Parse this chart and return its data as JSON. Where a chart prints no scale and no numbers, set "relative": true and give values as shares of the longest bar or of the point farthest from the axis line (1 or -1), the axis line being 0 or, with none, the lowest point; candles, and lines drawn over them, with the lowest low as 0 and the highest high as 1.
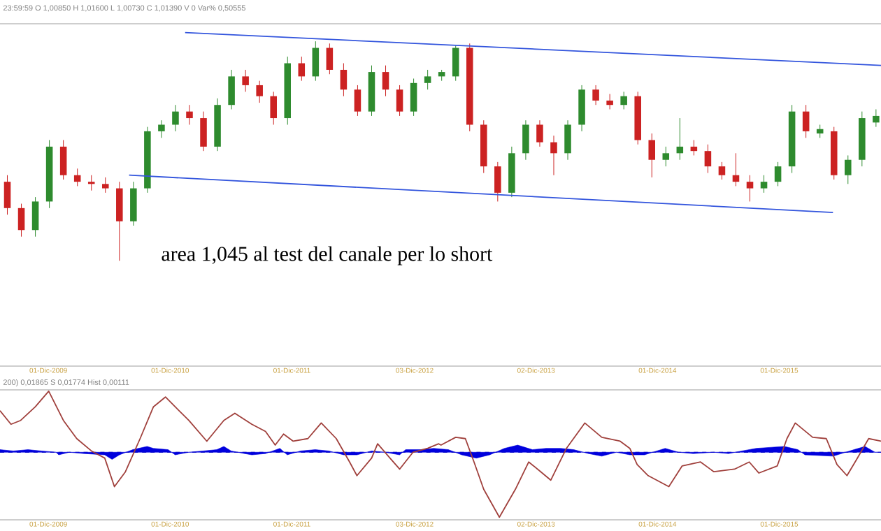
{
  "chart_data": [
    {
      "type": "candlestick",
      "relative": true,
      "colors": [
        "#cc2222",
        "#cc2222",
        "#2e8b2e",
        "#2e8b2e",
        "#cc2222",
        "#cc2222",
        "#cc2222",
        "#cc2222",
        "#cc2222",
        "#2e8b2e",
        "#2e8b2e",
        "#2e8b2e",
        "#2e8b2e",
        "#cc2222",
        "#cc2222",
        "#2e8b2e",
        "#2e8b2e",
        "#cc2222",
        "#cc2222",
        "#cc2222",
        "#2e8b2e",
        "#cc2222",
        "#2e8b2e",
        "#cc2222",
        "#cc2222",
        "#cc2222",
        "#2e8b2e",
        "#cc2222",
        "#cc2222",
        "#2e8b2e",
        "#2e8b2e",
        "#2e8b2e",
        "#2e8b2e",
        "#cc2222",
        "#cc2222",
        "#cc2222",
        "#2e8b2e",
        "#2e8b2e",
        "#cc2222",
        "#cc2222",
        "#2e8b2e",
        "#2e8b2e",
        "#cc2222",
        "#cc2222",
        "#2e8b2e",
        "#cc2222",
        "#cc2222",
        "#2e8b2e",
        "#2e8b2e",
        "#cc2222",
        "#cc2222",
        "#cc2222",
        "#cc2222",
        "#cc2222",
        "#2e8b2e",
        "#2e8b2e",
        "#2e8b2e",
        "#cc2222",
        "#2e8b2e",
        "#cc2222",
        "#2e8b2e",
        "#2e8b2e",
        "#2e8b2e"
      ],
      "xlim": [
        "2009-07-09",
        "2016-10-01"
      ],
      "xticks": [
        {
          "value": "2009-12-01",
          "label": "01-Dic-2009"
        },
        {
          "value": "2010-12-01",
          "label": "01-Dic-2010"
        },
        {
          "value": "2011-12-01",
          "label": "01-Dic-2011"
        },
        {
          "value": "2012-12-03",
          "label": "03-Dic-2012"
        },
        {
          "value": "2013-12-02",
          "label": "02-Dic-2013"
        },
        {
          "value": "2014-12-01",
          "label": "01-Dic-2014"
        },
        {
          "value": "2015-12-01",
          "label": "01-Dic-2015"
        }
      ],
      "x": [
        "2009-07-31",
        "2009-09-11",
        "2009-10-23",
        "2009-12-04",
        "2010-01-15",
        "2010-02-26",
        "2010-04-09",
        "2010-05-21",
        "2010-07-02",
        "2010-08-13",
        "2010-09-24",
        "2010-11-05",
        "2010-12-17",
        "2011-01-28",
        "2011-03-11",
        "2011-04-22",
        "2011-06-03",
        "2011-07-15",
        "2011-08-26",
        "2011-10-07",
        "2011-11-18",
        "2011-12-30",
        "2012-02-10",
        "2012-03-23",
        "2012-05-04",
        "2012-06-15",
        "2012-07-27",
        "2012-09-07",
        "2012-10-19",
        "2012-11-30",
        "2013-01-11",
        "2013-02-22",
        "2013-04-05",
        "2013-05-17",
        "2013-06-28",
        "2013-08-09",
        "2013-09-20",
        "2013-11-01",
        "2013-12-13",
        "2014-01-24",
        "2014-03-07",
        "2014-04-18",
        "2014-05-30",
        "2014-07-11",
        "2014-08-22",
        "2014-10-03",
        "2014-11-14",
        "2014-12-26",
        "2015-02-06",
        "2015-03-20",
        "2015-05-01",
        "2015-06-12",
        "2015-07-24",
        "2015-09-04",
        "2015-10-16",
        "2015-11-27",
        "2016-01-08",
        "2016-02-19",
        "2016-04-01",
        "2016-05-13",
        "2016-06-24",
        "2016-08-05",
        "2016-09-16"
      ],
      "ohlc": [
        [
          0.36,
          0.39,
          0.21,
          0.24
        ],
        [
          0.24,
          0.26,
          0.11,
          0.14
        ],
        [
          0.14,
          0.29,
          0.11,
          0.27
        ],
        [
          0.27,
          0.55,
          0.24,
          0.52
        ],
        [
          0.52,
          0.55,
          0.37,
          0.39
        ],
        [
          0.39,
          0.42,
          0.34,
          0.36
        ],
        [
          0.36,
          0.39,
          0.32,
          0.35
        ],
        [
          0.35,
          0.38,
          0.31,
          0.33
        ],
        [
          0.33,
          0.36,
          0,
          0.18
        ],
        [
          0.18,
          0.36,
          0.16,
          0.33
        ],
        [
          0.33,
          0.61,
          0.31,
          0.59
        ],
        [
          0.59,
          0.64,
          0.56,
          0.62
        ],
        [
          0.62,
          0.71,
          0.59,
          0.68
        ],
        [
          0.68,
          0.71,
          0.62,
          0.65
        ],
        [
          0.65,
          0.68,
          0.5,
          0.52
        ],
        [
          0.52,
          0.74,
          0.5,
          0.71
        ],
        [
          0.71,
          0.87,
          0.69,
          0.84
        ],
        [
          0.84,
          0.87,
          0.77,
          0.8
        ],
        [
          0.8,
          0.82,
          0.72,
          0.75
        ],
        [
          0.75,
          0.77,
          0.62,
          0.65
        ],
        [
          0.65,
          0.93,
          0.62,
          0.9
        ],
        [
          0.9,
          0.93,
          0.82,
          0.84
        ],
        [
          0.84,
          1.0,
          0.82,
          0.97
        ],
        [
          0.97,
          0.99,
          0.85,
          0.87
        ],
        [
          0.87,
          0.9,
          0.75,
          0.78
        ],
        [
          0.78,
          0.8,
          0.66,
          0.68
        ],
        [
          0.68,
          0.89,
          0.66,
          0.86
        ],
        [
          0.86,
          0.89,
          0.75,
          0.78
        ],
        [
          0.78,
          0.8,
          0.66,
          0.68
        ],
        [
          0.68,
          0.83,
          0.66,
          0.81
        ],
        [
          0.81,
          0.87,
          0.78,
          0.84
        ],
        [
          0.84,
          0.87,
          0.82,
          0.86
        ],
        [
          0.84,
          0.98,
          0.82,
          0.97
        ],
        [
          0.97,
          0.99,
          0.59,
          0.62
        ],
        [
          0.62,
          0.64,
          0.4,
          0.43
        ],
        [
          0.43,
          0.45,
          0.27,
          0.31
        ],
        [
          0.31,
          0.52,
          0.29,
          0.49
        ],
        [
          0.49,
          0.64,
          0.46,
          0.62
        ],
        [
          0.62,
          0.64,
          0.52,
          0.54
        ],
        [
          0.54,
          0.57,
          0.39,
          0.49
        ],
        [
          0.49,
          0.64,
          0.46,
          0.62
        ],
        [
          0.62,
          0.8,
          0.59,
          0.78
        ],
        [
          0.78,
          0.8,
          0.71,
          0.73
        ],
        [
          0.73,
          0.76,
          0.69,
          0.71
        ],
        [
          0.71,
          0.77,
          0.69,
          0.75
        ],
        [
          0.75,
          0.77,
          0.53,
          0.55
        ],
        [
          0.55,
          0.58,
          0.38,
          0.46
        ],
        [
          0.46,
          0.52,
          0.43,
          0.49
        ],
        [
          0.49,
          0.65,
          0.46,
          0.52
        ],
        [
          0.52,
          0.55,
          0.48,
          0.5
        ],
        [
          0.5,
          0.53,
          0.4,
          0.43
        ],
        [
          0.43,
          0.45,
          0.37,
          0.39
        ],
        [
          0.39,
          0.49,
          0.34,
          0.36
        ],
        [
          0.36,
          0.39,
          0.27,
          0.33
        ],
        [
          0.33,
          0.39,
          0.31,
          0.36
        ],
        [
          0.36,
          0.45,
          0.34,
          0.43
        ],
        [
          0.43,
          0.71,
          0.4,
          0.68
        ],
        [
          0.68,
          0.71,
          0.56,
          0.59
        ],
        [
          0.58,
          0.62,
          0.56,
          0.6
        ],
        [
          0.59,
          0.61,
          0.37,
          0.39
        ],
        [
          0.39,
          0.48,
          0.35,
          0.46
        ],
        [
          0.46,
          0.68,
          0.43,
          0.65
        ],
        [
          0.63,
          0.69,
          0.61,
          0.66
        ]
      ],
      "series": [
        {
          "type": "line",
          "color": "#3355dd",
          "x": [
            "2011-01-15",
            "2016-10-01"
          ],
          "values": [
            1.04,
            0.89
          ]
        },
        {
          "type": "line",
          "color": "#3355dd",
          "x": [
            "2010-07-31",
            "2016-05-10"
          ],
          "values": [
            0.39,
            0.22
          ]
        }
      ],
      "annotations": [
        "23:59:59  O 1,00850  H 1,01600  L 1,00730  C 1,01390  V 0  Var% 0,50555",
        "area 1,045 al test del canale per lo short"
      ]
    },
    {
      "type": "line",
      "relative": true,
      "xlim": [
        "2009-07-09",
        "2016-10-01"
      ],
      "xticks": [
        {
          "value": "2009-12-01",
          "label": "01-Dic-2009"
        },
        {
          "value": "2010-12-01",
          "label": "01-Dic-2010"
        },
        {
          "value": "2011-12-01",
          "label": "01-Dic-2011"
        },
        {
          "value": "2012-12-03",
          "label": "03-Dic-2012"
        },
        {
          "value": "2013-12-02",
          "label": "02-Dic-2013"
        },
        {
          "value": "2014-12-01",
          "label": "01-Dic-2014"
        },
        {
          "value": "2015-12-01",
          "label": "01-Dic-2015"
        }
      ],
      "series": [
        {
          "type": "area",
          "color": "#0000dd",
          "x": [
            "2009-07-09",
            "2009-08-18",
            "2009-10-01",
            "2009-11-10",
            "2009-12-24",
            "2010-01-01",
            "2010-02-02",
            "2010-03-18",
            "2010-05-19",
            "2010-06-10",
            "2010-07-02",
            "2010-08-11",
            "2010-09-23",
            "2010-10-12",
            "2010-11-25",
            "2010-12-16",
            "2011-01-26",
            "2011-03-10",
            "2011-04-20",
            "2011-05-11",
            "2011-06-02",
            "2011-07-12",
            "2011-08-03",
            "2011-09-13",
            "2011-10-26",
            "2011-11-17",
            "2011-12-27",
            "2012-02-09",
            "2012-03-21",
            "2012-05-04",
            "2012-06-13",
            "2012-07-27",
            "2012-09-05",
            "2012-10-19",
            "2012-11-06",
            "2012-12-20",
            "2013-01-29",
            "2013-03-14",
            "2013-04-23",
            "2013-06-06",
            "2013-07-16",
            "2013-08-29",
            "2013-10-08",
            "2013-11-21",
            "2014-01-01",
            "2014-02-13",
            "2014-03-25",
            "2014-05-08",
            "2014-06-17",
            "2014-07-31",
            "2014-09-09",
            "2014-10-23",
            "2014-12-24",
            "2015-02-02",
            "2015-03-18",
            "2015-05-19",
            "2015-07-02",
            "2015-08-11",
            "2015-09-23",
            "2015-12-16",
            "2016-01-26",
            "2016-02-16",
            "2016-05-11",
            "2016-07-12",
            "2016-08-14",
            "2016-09-13",
            "2016-10-01"
          ],
          "values": [
            0.04,
            0.02,
            0.04,
            0.02,
            0.0,
            -0.04,
            0.0,
            -0.02,
            -0.04,
            -0.11,
            -0.04,
            0.04,
            0.09,
            0.06,
            0.04,
            -0.04,
            0.0,
            0.02,
            0.04,
            0.09,
            0.02,
            -0.02,
            -0.04,
            -0.02,
            0.06,
            -0.04,
            0.02,
            0.04,
            0.02,
            -0.04,
            -0.04,
            0.02,
            0.0,
            -0.04,
            0.04,
            0.04,
            0.06,
            0.04,
            -0.04,
            -0.09,
            -0.04,
            0.06,
            0.11,
            0.04,
            0.06,
            0.06,
            0.04,
            -0.02,
            -0.06,
            0.0,
            -0.04,
            -0.04,
            0.06,
            0.0,
            -0.02,
            0.0,
            -0.02,
            0.02,
            0.06,
            0.09,
            0.04,
            -0.04,
            -0.06,
            0.04,
            0.09,
            0.0,
            0.0
          ]
        },
        {
          "color": "#a0403c",
          "x": [
            "2009-07-09",
            "2009-08-11",
            "2009-09-09",
            "2009-10-23",
            "2009-12-02",
            "2010-01-15",
            "2010-02-24",
            "2010-04-09",
            "2010-05-19",
            "2010-06-17",
            "2010-07-20",
            "2010-09-02",
            "2010-10-12",
            "2010-11-17",
            "2010-12-16",
            "2011-01-26",
            "2011-03-21",
            "2011-05-11",
            "2011-06-13",
            "2011-08-03",
            "2011-09-13",
            "2011-10-12",
            "2011-11-06",
            "2011-12-05",
            "2012-01-18",
            "2012-02-27",
            "2012-04-12",
            "2012-05-22",
            "2012-06-13",
            "2012-07-27",
            "2012-08-14",
            "2012-09-20",
            "2012-10-19",
            "2012-11-28",
            "2013-01-11",
            "2013-02-13",
            "2013-02-20",
            "2013-04-05",
            "2013-05-04",
            "2013-05-30",
            "2013-06-28",
            "2013-08-14",
            "2013-10-01",
            "2013-11-10",
            "2013-12-16",
            "2014-01-15",
            "2014-03-03",
            "2014-04-27",
            "2014-06-17",
            "2014-08-11",
            "2014-09-09",
            "2014-10-01",
            "2014-11-03",
            "2015-01-04",
            "2015-02-13",
            "2015-04-09",
            "2015-05-19",
            "2015-07-20",
            "2015-09-02",
            "2015-10-01",
            "2015-11-25",
            "2015-12-24",
            "2016-01-18",
            "2016-03-10",
            "2016-04-20",
            "2016-05-22",
            "2016-06-21",
            "2016-07-20",
            "2016-08-25",
            "2016-10-01"
          ],
          "values": [
            0.64,
            0.43,
            0.49,
            0.7,
            0.94,
            0.49,
            0.21,
            0.02,
            -0.09,
            -0.53,
            -0.3,
            0.21,
            0.7,
            0.85,
            0.7,
            0.49,
            0.17,
            0.49,
            0.6,
            0.43,
            0.32,
            0.11,
            0.28,
            0.17,
            0.21,
            0.45,
            0.21,
            -0.15,
            -0.36,
            -0.09,
            0.13,
            -0.09,
            -0.26,
            0,
            0.06,
            0.13,
            0.11,
            0.23,
            0.21,
            -0.15,
            -0.57,
            -1.0,
            -0.57,
            -0.15,
            -0.3,
            -0.43,
            0.06,
            0.45,
            0.23,
            0.17,
            0.06,
            -0.19,
            -0.36,
            -0.53,
            -0.21,
            -0.15,
            -0.3,
            -0.26,
            -0.15,
            -0.32,
            -0.21,
            0.21,
            0.45,
            0.23,
            0.21,
            -0.19,
            -0.36,
            -0.11,
            0.21,
            0.17
          ]
        }
      ],
      "annotations": [
        "200)  0,01865  S  0,01774  Hist  0,00111"
      ]
    }
  ]
}
